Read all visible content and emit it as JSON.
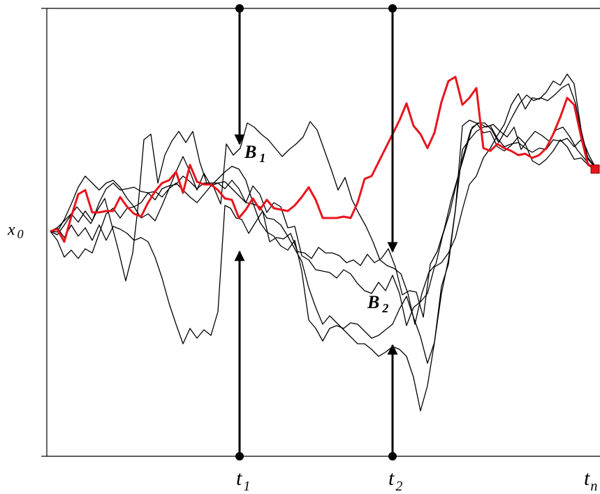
{
  "labels": {
    "x0_main": "x",
    "x0_sub": "0",
    "b1_main": "B",
    "b1_sub": "1",
    "b2_main": "B",
    "b2_sub": "2",
    "t1_main": "t",
    "t1_sub": "1",
    "t2_main": "t",
    "t2_sub": "2",
    "tn_main": "t",
    "tn_sub": "n"
  },
  "colors": {
    "paths": "#000000",
    "highlight_path": "#e8141c",
    "endpoint_marker": "#e8141c"
  }
}
